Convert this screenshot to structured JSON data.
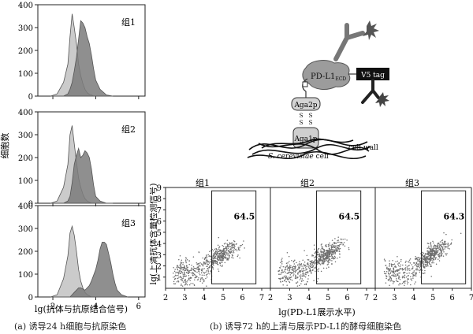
{
  "panel_a": {
    "ylabel": "细胞数",
    "xlabel": "lg(抗体与抗原结合信号)",
    "caption": "(a) 诱导24 h细胞与抗原染色",
    "groups": [
      "组1",
      "组2",
      "组3"
    ],
    "y_ticks": [
      "0",
      "100",
      "200",
      "300",
      "400"
    ],
    "x_ticks": [
      "2",
      "4",
      "6"
    ],
    "y_range": [
      0,
      400
    ],
    "x_range": [
      1.3,
      6.3
    ]
  },
  "panel_b": {
    "caption": "(b) 诱导72 h的上清与展示PD-L1的酵母细胞染色",
    "ylabel": "lg(上清抗体含量检测信号)",
    "xlabel": "lg(PD-L1展示水平)",
    "x_ticks": [
      "2",
      "3",
      "4",
      "5",
      "6",
      "7"
    ],
    "y_ticks": [
      "0",
      "1",
      "2",
      "3",
      "4",
      "5",
      "6",
      "7",
      "8",
      "9"
    ],
    "groups": [
      {
        "label": "组1",
        "value": "64.5"
      },
      {
        "label": "组2",
        "value": "64.5"
      },
      {
        "label": "组3",
        "value": "64.3"
      }
    ]
  },
  "schematic": {
    "pdl1_main": "PD-L1",
    "pdl1_sub": "ECD",
    "v5": "V5 tag",
    "aga2": "Aga2p",
    "aga1": "Aga1p",
    "ss": "S\nS",
    "cell_italic": "S. cerevisiae",
    "cell_suffix": " cell",
    "wall": "cell wall"
  },
  "chart_data": [
    {
      "type": "area",
      "title": "组1",
      "xlabel": "lg(抗体与抗原结合信号)",
      "ylabel": "细胞数",
      "xlim": [
        1.3,
        6.3
      ],
      "ylim": [
        0,
        400
      ],
      "x": [
        1.9,
        2.2,
        2.5,
        2.7,
        2.8,
        2.9,
        3.0,
        3.1,
        3.2,
        3.3,
        3.4,
        3.5,
        3.6,
        3.7,
        3.8,
        3.9,
        4.0,
        4.2,
        4.5,
        4.8
      ],
      "series": [
        {
          "name": "",
          "values": [
            0,
            10,
            60,
            140,
            260,
            360,
            300,
            230,
            140,
            90,
            55,
            30,
            15,
            8,
            5,
            0,
            0,
            0,
            0,
            0
          ]
        },
        {
          "name": "",
          "values": [
            0,
            0,
            0,
            10,
            30,
            60,
            110,
            170,
            250,
            330,
            320,
            300,
            260,
            230,
            180,
            120,
            70,
            30,
            5,
            0
          ]
        }
      ]
    },
    {
      "type": "area",
      "title": "组2",
      "xlabel": "lg(抗体与抗原结合信号)",
      "ylabel": "细胞数",
      "xlim": [
        1.3,
        6.3
      ],
      "ylim": [
        0,
        400
      ],
      "x": [
        1.9,
        2.2,
        2.5,
        2.7,
        2.8,
        2.9,
        3.0,
        3.1,
        3.2,
        3.3,
        3.4,
        3.5,
        3.6,
        3.7,
        3.8,
        3.9,
        4.0,
        4.2,
        4.5,
        4.8
      ],
      "series": [
        {
          "name": "",
          "values": [
            0,
            10,
            70,
            170,
            300,
            340,
            260,
            180,
            110,
            70,
            40,
            20,
            10,
            5,
            0,
            0,
            0,
            0,
            0,
            0
          ]
        },
        {
          "name": "",
          "values": [
            0,
            0,
            0,
            10,
            30,
            90,
            170,
            210,
            240,
            200,
            210,
            230,
            220,
            200,
            150,
            80,
            30,
            10,
            0,
            0
          ]
        }
      ]
    },
    {
      "type": "area",
      "title": "组3",
      "xlabel": "lg(抗体与抗原结合信号)",
      "ylabel": "细胞数",
      "xlim": [
        1.3,
        6.3
      ],
      "ylim": [
        0,
        400
      ],
      "x": [
        1.9,
        2.2,
        2.5,
        2.7,
        2.8,
        2.9,
        3.0,
        3.1,
        3.2,
        3.3,
        3.4,
        3.5,
        3.6,
        3.7,
        3.8,
        4.0,
        4.1,
        4.2,
        4.3,
        4.4,
        4.5,
        4.6,
        4.7,
        4.8,
        4.9,
        5.0,
        5.2,
        5.5
      ],
      "series": [
        {
          "name": "",
          "values": [
            0,
            10,
            80,
            180,
            280,
            310,
            270,
            200,
            120,
            70,
            40,
            20,
            10,
            5,
            0,
            0,
            0,
            0,
            0,
            0,
            0,
            0,
            0,
            0,
            0,
            0,
            0,
            0
          ]
        },
        {
          "name": "",
          "values": [
            0,
            0,
            0,
            0,
            0,
            10,
            20,
            30,
            40,
            40,
            35,
            30,
            40,
            50,
            70,
            120,
            160,
            210,
            240,
            240,
            230,
            190,
            150,
            100,
            60,
            30,
            10,
            0
          ]
        }
      ]
    },
    {
      "type": "scatter",
      "title": "组1",
      "xlabel": "lg(PD-L1展示水平)",
      "ylabel": "lg(上清抗体含量检测信号)",
      "xlim": [
        2,
        7
      ],
      "ylim": [
        0,
        9
      ],
      "gate": {
        "x": [
          4.4,
          6.7
        ],
        "y": [
          0.4,
          8.7
        ],
        "percent": 64.5
      }
    },
    {
      "type": "scatter",
      "title": "组2",
      "xlabel": "lg(PD-L1展示水平)",
      "ylabel": "lg(上清抗体含量检测信号)",
      "xlim": [
        2,
        7
      ],
      "ylim": [
        0,
        9
      ],
      "gate": {
        "x": [
          4.4,
          6.7
        ],
        "y": [
          0.4,
          8.7
        ],
        "percent": 64.5
      }
    },
    {
      "type": "scatter",
      "title": "组3",
      "xlabel": "lg(PD-L1展示水平)",
      "ylabel": "lg(上清抗体含量检测信号)",
      "xlim": [
        2,
        7
      ],
      "ylim": [
        0,
        9
      ],
      "gate": {
        "x": [
          4.4,
          6.7
        ],
        "y": [
          0.4,
          8.7
        ],
        "percent": 64.3
      }
    }
  ],
  "colors": {
    "light_fill": "#c8c8c8",
    "dark_fill": "#7b7b7b",
    "dot": "#6e6e6e",
    "axis": "#222222"
  }
}
